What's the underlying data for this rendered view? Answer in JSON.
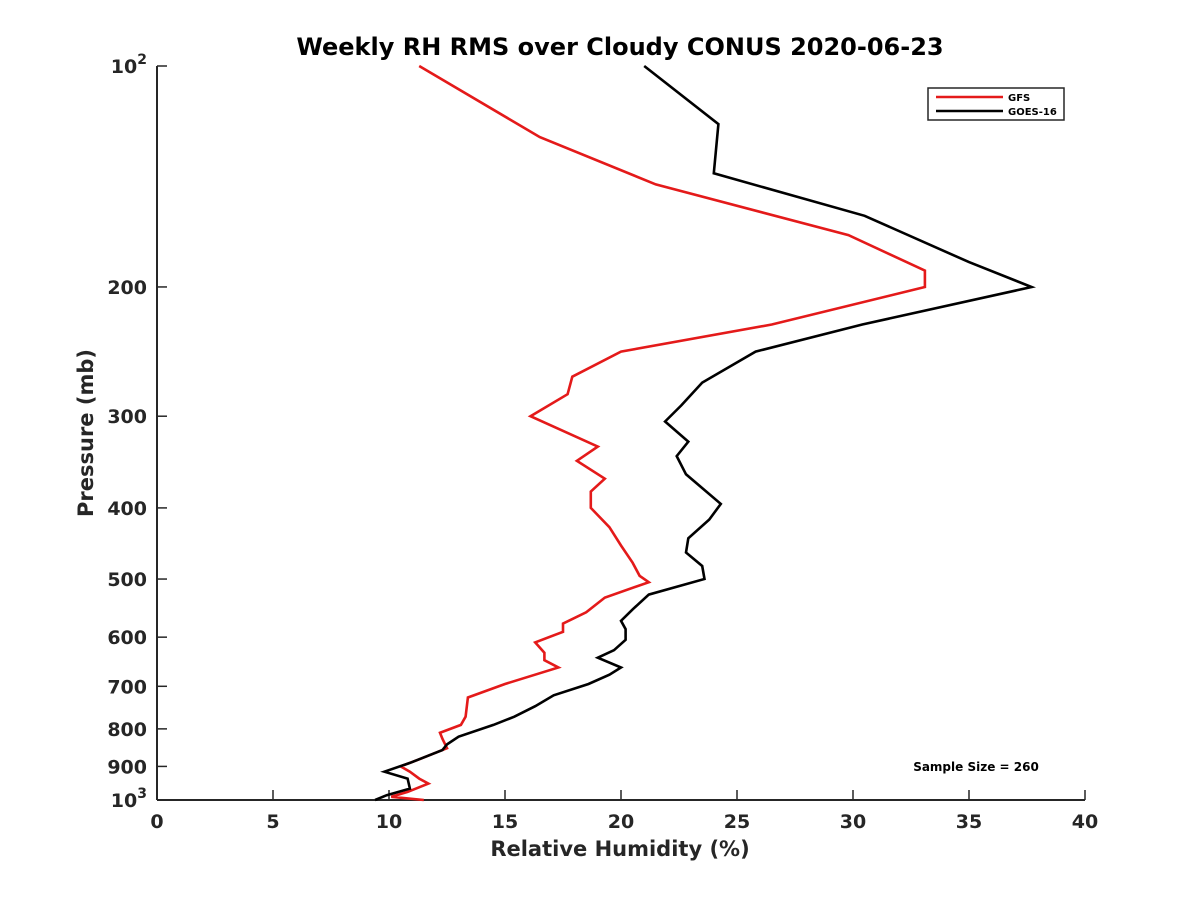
{
  "chart_data": {
    "type": "line",
    "title": "Weekly RH RMS over Cloudy CONUS 2020-06-23",
    "xlabel": "Relative Humidity (%)",
    "ylabel": "Pressure (mb)",
    "xlim": [
      0,
      40
    ],
    "ylim": [
      100,
      1000
    ],
    "y_scale": "log",
    "y_reversed": true,
    "xticks": [
      0,
      5,
      10,
      15,
      20,
      25,
      30,
      35,
      40
    ],
    "yticks": [
      {
        "value": 100,
        "label": "10",
        "sup": "2"
      },
      {
        "value": 200,
        "label": "200",
        "sup": ""
      },
      {
        "value": 300,
        "label": "300",
        "sup": ""
      },
      {
        "value": 400,
        "label": "400",
        "sup": ""
      },
      {
        "value": 500,
        "label": "500",
        "sup": ""
      },
      {
        "value": 600,
        "label": "600",
        "sup": ""
      },
      {
        "value": 700,
        "label": "700",
        "sup": ""
      },
      {
        "value": 800,
        "label": "800",
        "sup": ""
      },
      {
        "value": 900,
        "label": "900",
        "sup": ""
      },
      {
        "value": 1000,
        "label": "10",
        "sup": "3"
      }
    ],
    "grid": false,
    "legend_position": "top-right",
    "annotation": "Sample Size = 260",
    "series": [
      {
        "name": "GFS",
        "color": "#e41a1a",
        "points": [
          [
            11.5,
            1000
          ],
          [
            10.1,
            990
          ],
          [
            10.8,
            975
          ],
          [
            11.7,
            950
          ],
          [
            11.3,
            935
          ],
          [
            10.9,
            915
          ],
          [
            10.5,
            900
          ],
          [
            11.3,
            880
          ],
          [
            12.5,
            850
          ],
          [
            12.3,
            825
          ],
          [
            12.2,
            810
          ],
          [
            13.1,
            790
          ],
          [
            13.3,
            770
          ],
          [
            13.4,
            725
          ],
          [
            15.0,
            695
          ],
          [
            17.3,
            660
          ],
          [
            16.7,
            645
          ],
          [
            16.7,
            630
          ],
          [
            16.3,
            610
          ],
          [
            17.5,
            590
          ],
          [
            17.5,
            575
          ],
          [
            18.5,
            555
          ],
          [
            19.3,
            530
          ],
          [
            21.2,
            505
          ],
          [
            20.8,
            495
          ],
          [
            20.5,
            475
          ],
          [
            20.0,
            450
          ],
          [
            19.5,
            425
          ],
          [
            18.7,
            400
          ],
          [
            18.7,
            380
          ],
          [
            19.3,
            365
          ],
          [
            18.1,
            345
          ],
          [
            19.0,
            330
          ],
          [
            16.1,
            300
          ],
          [
            17.7,
            280
          ],
          [
            17.9,
            265
          ],
          [
            20.0,
            245
          ],
          [
            26.5,
            225
          ],
          [
            33.1,
            200
          ],
          [
            33.1,
            190
          ],
          [
            29.8,
            170
          ],
          [
            21.5,
            145
          ],
          [
            16.5,
            125
          ],
          [
            11.3,
            100
          ]
        ]
      },
      {
        "name": "GOES-16",
        "color": "#000000",
        "points": [
          [
            9.4,
            1000
          ],
          [
            9.9,
            985
          ],
          [
            10.9,
            965
          ],
          [
            10.8,
            935
          ],
          [
            9.8,
            915
          ],
          [
            10.9,
            890
          ],
          [
            12.3,
            855
          ],
          [
            12.5,
            840
          ],
          [
            13.0,
            820
          ],
          [
            14.5,
            790
          ],
          [
            15.4,
            770
          ],
          [
            16.3,
            745
          ],
          [
            17.1,
            720
          ],
          [
            18.6,
            695
          ],
          [
            19.5,
            675
          ],
          [
            20.0,
            660
          ],
          [
            19.0,
            640
          ],
          [
            19.7,
            625
          ],
          [
            20.2,
            605
          ],
          [
            20.2,
            585
          ],
          [
            20.0,
            570
          ],
          [
            20.5,
            550
          ],
          [
            21.2,
            525
          ],
          [
            23.6,
            500
          ],
          [
            23.5,
            480
          ],
          [
            22.8,
            460
          ],
          [
            22.9,
            440
          ],
          [
            23.8,
            415
          ],
          [
            24.3,
            395
          ],
          [
            22.8,
            360
          ],
          [
            22.4,
            340
          ],
          [
            22.9,
            325
          ],
          [
            21.9,
            305
          ],
          [
            22.6,
            290
          ],
          [
            23.5,
            270
          ],
          [
            25.8,
            245
          ],
          [
            30.4,
            225
          ],
          [
            37.7,
            200
          ],
          [
            35.0,
            185
          ],
          [
            30.5,
            160
          ],
          [
            24.0,
            140
          ],
          [
            24.2,
            120
          ],
          [
            21.0,
            100
          ]
        ]
      }
    ]
  }
}
